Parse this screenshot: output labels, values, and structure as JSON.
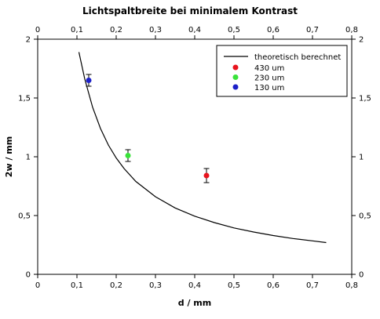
{
  "chart_data": {
    "type": "scatter",
    "title": "Lichtspaltbreite bei minimalem Kontrast",
    "xlabel": "d / mm",
    "ylabel": "2w / mm",
    "xlim": [
      0,
      0.8
    ],
    "ylim": [
      0,
      2
    ],
    "x_ticks": [
      "0",
      "0,1",
      "0,2",
      "0,3",
      "0,4",
      "0,5",
      "0,6",
      "0,7",
      "0,8"
    ],
    "y_ticks": [
      "0",
      "0,5",
      "1",
      "1,5",
      "2"
    ],
    "x_tick_values": [
      0,
      0.1,
      0.2,
      0.3,
      0.4,
      0.5,
      0.6,
      0.7,
      0.8
    ],
    "y_tick_values": [
      0,
      0.5,
      1,
      1.5,
      2
    ],
    "grid": false,
    "legend_position": "top-right",
    "curve": {
      "name": "theoretisch berechnet",
      "color": "#000000",
      "x": [
        0.105,
        0.12,
        0.14,
        0.16,
        0.18,
        0.2,
        0.22,
        0.25,
        0.3,
        0.35,
        0.4,
        0.45,
        0.5,
        0.55,
        0.6,
        0.65,
        0.7,
        0.735
      ],
      "y": [
        1.89,
        1.66,
        1.42,
        1.24,
        1.1,
        0.99,
        0.9,
        0.79,
        0.66,
        0.565,
        0.495,
        0.44,
        0.395,
        0.36,
        0.33,
        0.305,
        0.285,
        0.27
      ]
    },
    "series": [
      {
        "name": "430 um",
        "color": "#e8131d",
        "x": [
          0.43
        ],
        "y": [
          0.84
        ],
        "err_low": [
          0.06
        ],
        "err_high": [
          0.06
        ]
      },
      {
        "name": "230 um",
        "color": "#3ae23a",
        "x": [
          0.23
        ],
        "y": [
          1.01
        ],
        "err_low": [
          0.05
        ],
        "err_high": [
          0.05
        ]
      },
      {
        "name": "130 um",
        "color": "#1c20c8",
        "x": [
          0.13
        ],
        "y": [
          1.65
        ],
        "err_low": [
          0.05
        ],
        "err_high": [
          0.05
        ]
      }
    ]
  }
}
